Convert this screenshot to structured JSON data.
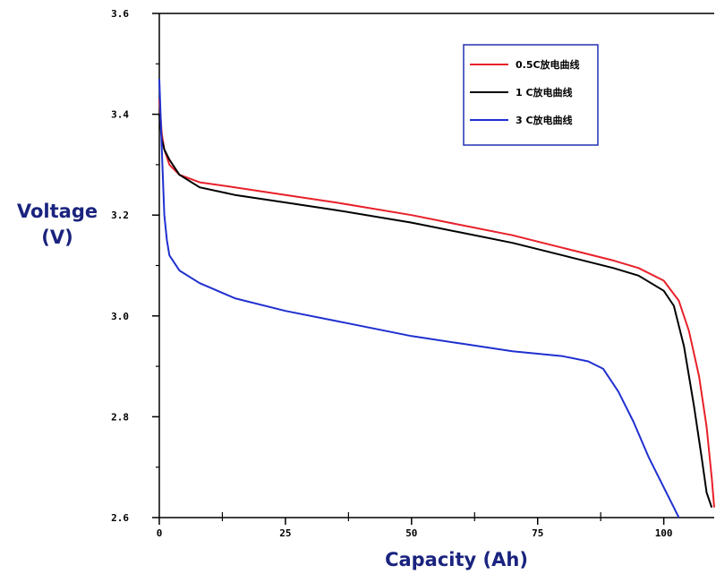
{
  "chart_data": {
    "type": "line",
    "xlabel": "Capacity (Ah)",
    "ylabel": [
      "Voltage",
      "(V)"
    ],
    "xlim": [
      0,
      110
    ],
    "ylim": [
      2.6,
      3.6
    ],
    "x_ticks": [
      0,
      25,
      50,
      75,
      100
    ],
    "x_tick_labels": [
      "0",
      "25",
      "50",
      "75",
      "100"
    ],
    "y_ticks": [
      2.6,
      2.8,
      3.0,
      3.2,
      3.4,
      3.6
    ],
    "y_tick_labels": [
      "2.6",
      "2.8",
      "3.0",
      "3.2",
      "3.4",
      "3.6"
    ],
    "grid": false,
    "legend_position": "top-right",
    "series": [
      {
        "name": "0.5C放电曲线",
        "color": "#e8202a",
        "points": [
          [
            0,
            3.43
          ],
          [
            0.5,
            3.36
          ],
          [
            1,
            3.33
          ],
          [
            2,
            3.3
          ],
          [
            4,
            3.28
          ],
          [
            8,
            3.265
          ],
          [
            15,
            3.255
          ],
          [
            25,
            3.24
          ],
          [
            35,
            3.225
          ],
          [
            50,
            3.2
          ],
          [
            60,
            3.18
          ],
          [
            70,
            3.16
          ],
          [
            80,
            3.135
          ],
          [
            90,
            3.11
          ],
          [
            95,
            3.095
          ],
          [
            100,
            3.07
          ],
          [
            103,
            3.03
          ],
          [
            105,
            2.97
          ],
          [
            107,
            2.88
          ],
          [
            108.5,
            2.78
          ],
          [
            109.5,
            2.68
          ],
          [
            110,
            2.62
          ]
        ]
      },
      {
        "name": "1 C放电曲线",
        "color": "#000000",
        "points": [
          [
            0,
            3.4
          ],
          [
            0.5,
            3.35
          ],
          [
            1,
            3.33
          ],
          [
            2,
            3.31
          ],
          [
            4,
            3.28
          ],
          [
            8,
            3.255
          ],
          [
            15,
            3.24
          ],
          [
            25,
            3.225
          ],
          [
            35,
            3.21
          ],
          [
            50,
            3.185
          ],
          [
            60,
            3.165
          ],
          [
            70,
            3.145
          ],
          [
            80,
            3.12
          ],
          [
            90,
            3.095
          ],
          [
            95,
            3.08
          ],
          [
            100,
            3.05
          ],
          [
            102,
            3.02
          ],
          [
            104,
            2.94
          ],
          [
            106,
            2.82
          ],
          [
            107.5,
            2.72
          ],
          [
            108.5,
            2.65
          ],
          [
            109.5,
            2.62
          ]
        ]
      },
      {
        "name": "3 C放电曲线",
        "color": "#2030d0",
        "points": [
          [
            0,
            3.47
          ],
          [
            0.5,
            3.33
          ],
          [
            1,
            3.2
          ],
          [
            1.5,
            3.15
          ],
          [
            2,
            3.12
          ],
          [
            4,
            3.09
          ],
          [
            8,
            3.065
          ],
          [
            15,
            3.035
          ],
          [
            25,
            3.01
          ],
          [
            35,
            2.99
          ],
          [
            50,
            2.96
          ],
          [
            60,
            2.945
          ],
          [
            70,
            2.93
          ],
          [
            80,
            2.92
          ],
          [
            85,
            2.91
          ],
          [
            88,
            2.895
          ],
          [
            91,
            2.85
          ],
          [
            94,
            2.79
          ],
          [
            97,
            2.72
          ],
          [
            100,
            2.66
          ],
          [
            102,
            2.62
          ],
          [
            103,
            2.6
          ]
        ]
      }
    ]
  }
}
